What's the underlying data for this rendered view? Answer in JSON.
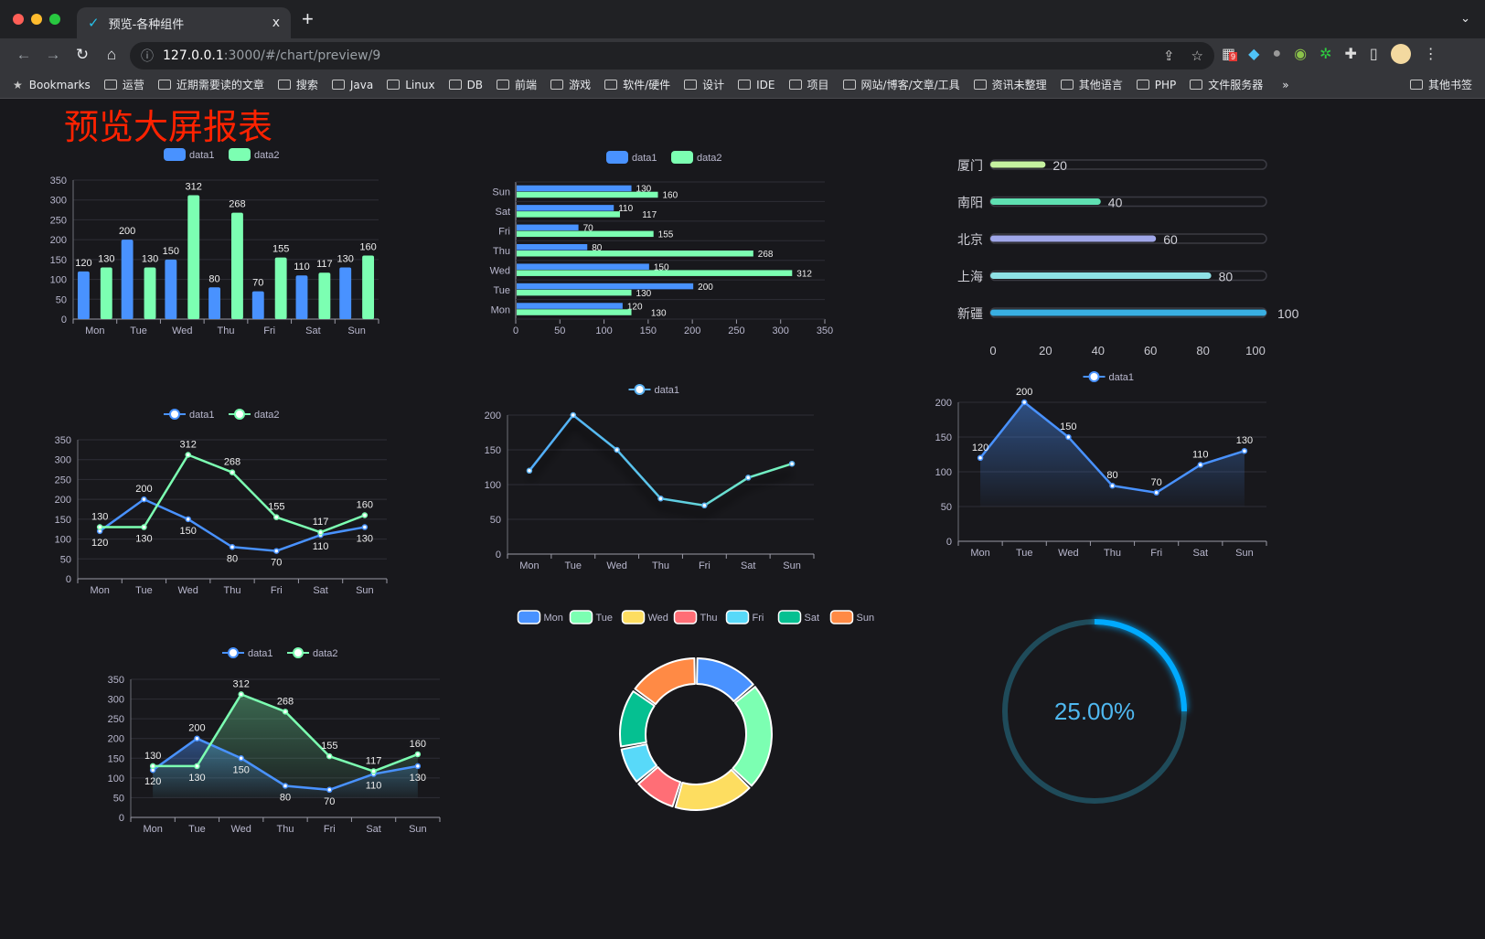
{
  "browser": {
    "tab_title": "预览-各种组件",
    "tab_close": "x",
    "new_tab": "+",
    "url_host": "127.0.0.1",
    "url_path": ":3000/#/chart/preview/9",
    "extension_badge": "9",
    "bookmarks_label": "Bookmarks",
    "bookmarks": [
      "运营",
      "近期需要读的文章",
      "搜索",
      "Java",
      "Linux",
      "DB",
      "前端",
      "游戏",
      "软件/硬件",
      "设计",
      "IDE",
      "项目",
      "网站/博客/文章/工具",
      "资讯未整理",
      "其他语言",
      "PHP",
      "文件服务器"
    ],
    "more": "»",
    "other_bookmarks": "其他书签"
  },
  "page": {
    "title": "预览大屏报表"
  },
  "colors": {
    "blue": "#4992ff",
    "green": "#7cffb2",
    "yellow": "#fddd60",
    "red": "#ff6e76",
    "cyan": "#58d9f9",
    "teal": "#05c091",
    "orange": "#ff8a45",
    "title": "#ff2200",
    "gauge": "#00aaff"
  },
  "chart_data": [
    {
      "type": "bar",
      "legend": [
        "data1",
        "data2"
      ],
      "categories": [
        "Mon",
        "Tue",
        "Wed",
        "Thu",
        "Fri",
        "Sat",
        "Sun"
      ],
      "series": [
        {
          "name": "data1",
          "values": [
            120,
            200,
            150,
            80,
            70,
            110,
            130
          ]
        },
        {
          "name": "data2",
          "values": [
            130,
            130,
            312,
            268,
            155,
            117,
            160
          ]
        }
      ],
      "ylim": [
        0,
        350
      ],
      "yticks": [
        0,
        50,
        100,
        150,
        200,
        250,
        300,
        350
      ],
      "data_labels": true
    },
    {
      "type": "bar",
      "orientation": "horizontal",
      "legend": [
        "data1",
        "data2"
      ],
      "categories": [
        "Mon",
        "Tue",
        "Wed",
        "Thu",
        "Fri",
        "Sat",
        "Sun"
      ],
      "series": [
        {
          "name": "data1",
          "values": [
            120,
            200,
            150,
            80,
            70,
            110,
            130
          ]
        },
        {
          "name": "data2",
          "values": [
            130,
            130,
            312,
            268,
            155,
            117,
            160
          ]
        }
      ],
      "xlim": [
        0,
        350
      ],
      "xticks": [
        0,
        50,
        100,
        150,
        200,
        250,
        300,
        350
      ],
      "data_labels": true
    },
    {
      "type": "bar",
      "orientation": "horizontal",
      "style": "progress",
      "categories": [
        "厦门",
        "南阳",
        "北京",
        "上海",
        "新疆"
      ],
      "values": [
        20,
        40,
        60,
        80,
        100
      ],
      "colors": [
        "#c6f2a0",
        "#5fe0b2",
        "#9fa6e8",
        "#8fe1e6",
        "#39afe2"
      ],
      "xlim": [
        0,
        100
      ],
      "xticks": [
        0,
        20,
        40,
        60,
        80,
        100
      ]
    },
    {
      "type": "line",
      "legend": [
        "data1",
        "data2"
      ],
      "categories": [
        "Mon",
        "Tue",
        "Wed",
        "Thu",
        "Fri",
        "Sat",
        "Sun"
      ],
      "series": [
        {
          "name": "data1",
          "values": [
            120,
            200,
            150,
            80,
            70,
            110,
            130
          ]
        },
        {
          "name": "data2",
          "values": [
            130,
            130,
            312,
            268,
            155,
            117,
            160
          ]
        }
      ],
      "ylim": [
        0,
        350
      ],
      "yticks": [
        0,
        50,
        100,
        150,
        200,
        250,
        300,
        350
      ],
      "data_labels": true
    },
    {
      "type": "line",
      "legend": [
        "data1"
      ],
      "categories": [
        "Mon",
        "Tue",
        "Wed",
        "Thu",
        "Fri",
        "Sat",
        "Sun"
      ],
      "series": [
        {
          "name": "data1",
          "values": [
            120,
            200,
            150,
            80,
            70,
            110,
            130
          ]
        }
      ],
      "ylim": [
        0,
        200
      ],
      "yticks": [
        0,
        50,
        100,
        150,
        200
      ],
      "data_labels": false,
      "gradient_line": true
    },
    {
      "type": "area",
      "legend": [
        "data1"
      ],
      "categories": [
        "Mon",
        "Tue",
        "Wed",
        "Thu",
        "Fri",
        "Sat",
        "Sun"
      ],
      "series": [
        {
          "name": "data1",
          "values": [
            120,
            200,
            150,
            80,
            70,
            110,
            130
          ]
        }
      ],
      "ylim": [
        0,
        200
      ],
      "yticks": [
        0,
        50,
        100,
        150,
        200
      ],
      "data_labels": true
    },
    {
      "type": "area",
      "legend": [
        "data1",
        "data2"
      ],
      "categories": [
        "Mon",
        "Tue",
        "Wed",
        "Thu",
        "Fri",
        "Sat",
        "Sun"
      ],
      "series": [
        {
          "name": "data1",
          "values": [
            120,
            200,
            150,
            80,
            70,
            110,
            130
          ]
        },
        {
          "name": "data2",
          "values": [
            130,
            130,
            312,
            268,
            155,
            117,
            160
          ]
        }
      ],
      "ylim": [
        0,
        350
      ],
      "yticks": [
        0,
        50,
        100,
        150,
        200,
        250,
        300,
        350
      ],
      "data_labels": true
    },
    {
      "type": "pie",
      "style": "donut",
      "legend": [
        "Mon",
        "Tue",
        "Wed",
        "Thu",
        "Fri",
        "Sat",
        "Sun"
      ],
      "categories": [
        "Mon",
        "Tue",
        "Wed",
        "Thu",
        "Fri",
        "Sat",
        "Sun"
      ],
      "values": [
        120,
        200,
        150,
        80,
        70,
        110,
        130
      ]
    },
    {
      "type": "gauge",
      "value": 25,
      "max": 100,
      "label": "25.00%"
    }
  ]
}
